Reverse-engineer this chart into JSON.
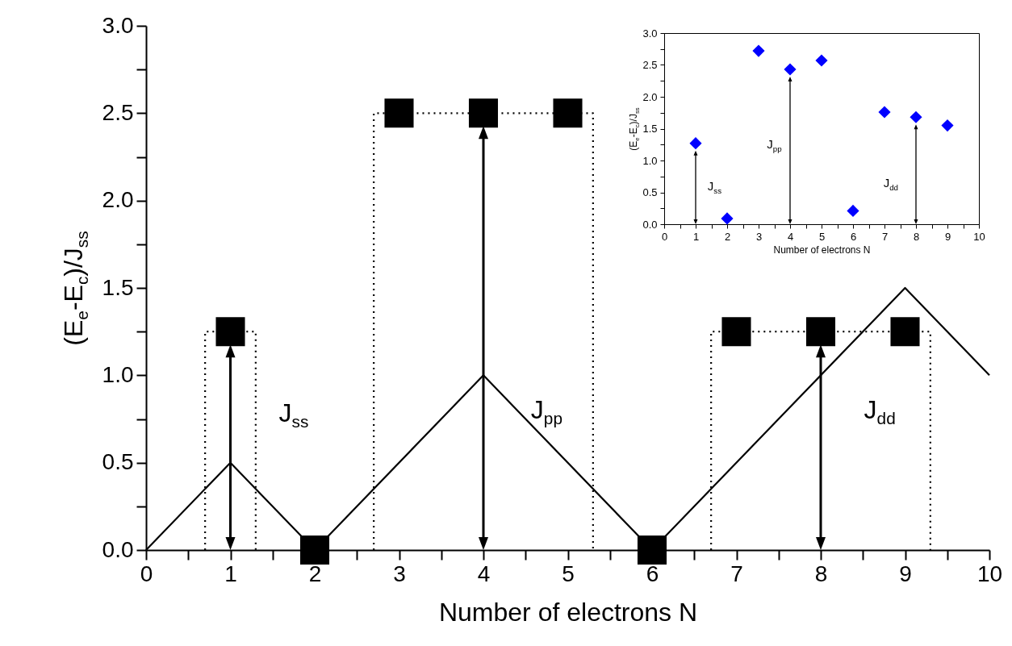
{
  "chart_data": [
    {
      "type": "line",
      "xlabel": "Number of electrons N",
      "ylabel": "(E$_{e}$-E$_{c}$)/J$_{ss}$",
      "xlim": [
        0,
        10
      ],
      "ylim": [
        0,
        3
      ],
      "xticks": [
        0,
        {
          "value": 0.5,
          "label": null
        },
        1,
        {
          "value": 1.5,
          "label": null
        },
        2,
        {
          "value": 2.5,
          "label": null
        },
        3,
        {
          "value": 3.5,
          "label": null
        },
        4,
        {
          "value": 4.5,
          "label": null
        },
        5,
        {
          "value": 5.5,
          "label": null
        },
        6,
        {
          "value": 6.5,
          "label": null
        },
        7,
        {
          "value": 7.5,
          "label": null
        },
        8,
        {
          "value": 8.5,
          "label": null
        },
        9,
        {
          "value": 9.5,
          "label": null
        },
        10
      ],
      "yticks": [
        {
          "value": 0,
          "label": "0.0"
        },
        {
          "value": 0.25,
          "label": null
        },
        0.5,
        {
          "value": 0.75,
          "label": null
        },
        {
          "value": 1,
          "label": "1.0"
        },
        {
          "value": 1.25,
          "label": null
        },
        1.5,
        {
          "value": 1.75,
          "label": null
        },
        {
          "value": 2,
          "label": "2.0"
        },
        {
          "value": 2.25,
          "label": null
        },
        2.5,
        {
          "value": 2.75,
          "label": null
        },
        {
          "value": 3,
          "label": "3.0"
        }
      ],
      "grid": false,
      "series": [
        {
          "color": "#000000",
          "line_style": "solid",
          "x": [
            0,
            1,
            2,
            4,
            6,
            9,
            10
          ],
          "values": [
            0,
            0.5,
            0,
            1,
            0,
            1.5,
            1
          ]
        },
        {
          "color": "#000000",
          "line_style": "dotted",
          "x": [
            0.7,
            0.7,
            1.3,
            1.3
          ],
          "values": [
            0,
            1.25,
            1.25,
            0
          ]
        },
        {
          "color": "#000000",
          "line_style": "dotted",
          "x": [
            2.7,
            2.7,
            5.3,
            5.3
          ],
          "values": [
            0,
            2.5,
            2.5,
            0
          ]
        },
        {
          "type": "line",
          "color": "#000000",
          "line_style": "dotted",
          "x": [
            6.7,
            6.7,
            9.3,
            9.3
          ],
          "values": [
            0,
            1.25,
            1.25,
            0
          ]
        },
        {
          "type": "scatter",
          "color": "#000000",
          "marker": "square",
          "x": [
            1,
            2,
            3,
            4,
            5,
            6,
            7,
            8,
            9
          ],
          "values": [
            1.25,
            0,
            2.5,
            2.5,
            2.5,
            0,
            1.25,
            1.25,
            1.25
          ]
        }
      ],
      "annotations": [
        "J$_{ss}$",
        "J$_{pp}$",
        "J$_{dd}$"
      ]
    },
    {
      "type": "scatter",
      "xlabel": "Number of electrons N",
      "ylabel": "(E$_{e}$-E$_{c}$)/J$_{ss}$",
      "xlim": [
        0,
        10
      ],
      "ylim": [
        0,
        3
      ],
      "xticks": [
        0,
        {
          "value": 0.5,
          "label": null
        },
        1,
        {
          "value": 1.5,
          "label": null
        },
        2,
        {
          "value": 2.5,
          "label": null
        },
        3,
        {
          "value": 3.5,
          "label": null
        },
        4,
        {
          "value": 4.5,
          "label": null
        },
        5,
        {
          "value": 5.5,
          "label": null
        },
        6,
        {
          "value": 6.5,
          "label": null
        },
        7,
        {
          "value": 7.5,
          "label": null
        },
        8,
        {
          "value": 8.5,
          "label": null
        },
        9,
        {
          "value": 9.5,
          "label": null
        },
        10
      ],
      "yticks": [
        {
          "value": 0,
          "label": "0.0"
        },
        {
          "value": 0.25,
          "label": null
        },
        0.5,
        {
          "value": 0.75,
          "label": null
        },
        {
          "value": 1,
          "label": "1.0"
        },
        {
          "value": 1.25,
          "label": null
        },
        1.5,
        {
          "value": 1.75,
          "label": null
        },
        {
          "value": 2,
          "label": "2.0"
        },
        {
          "value": 2.25,
          "label": null
        },
        2.5,
        {
          "value": 2.75,
          "label": null
        },
        {
          "value": 3,
          "label": "3.0"
        }
      ],
      "grid": false,
      "series": [
        {
          "color": "#0000ff",
          "marker": "diamond",
          "x": [
            1,
            2,
            3,
            4,
            5,
            6,
            7,
            8,
            9
          ],
          "values": [
            1.27,
            0.09,
            2.72,
            2.43,
            2.57,
            0.21,
            1.76,
            1.68,
            1.55
          ]
        }
      ],
      "annotations": [
        "J$_{ss}$",
        "J$_{pp}$",
        "J$_{dd}$"
      ]
    }
  ]
}
